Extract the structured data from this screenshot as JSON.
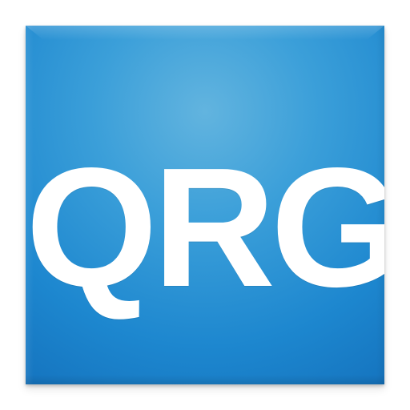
{
  "icon": {
    "text": "QRG",
    "background_color": "#2b95d6",
    "text_color": "#ffffff"
  }
}
